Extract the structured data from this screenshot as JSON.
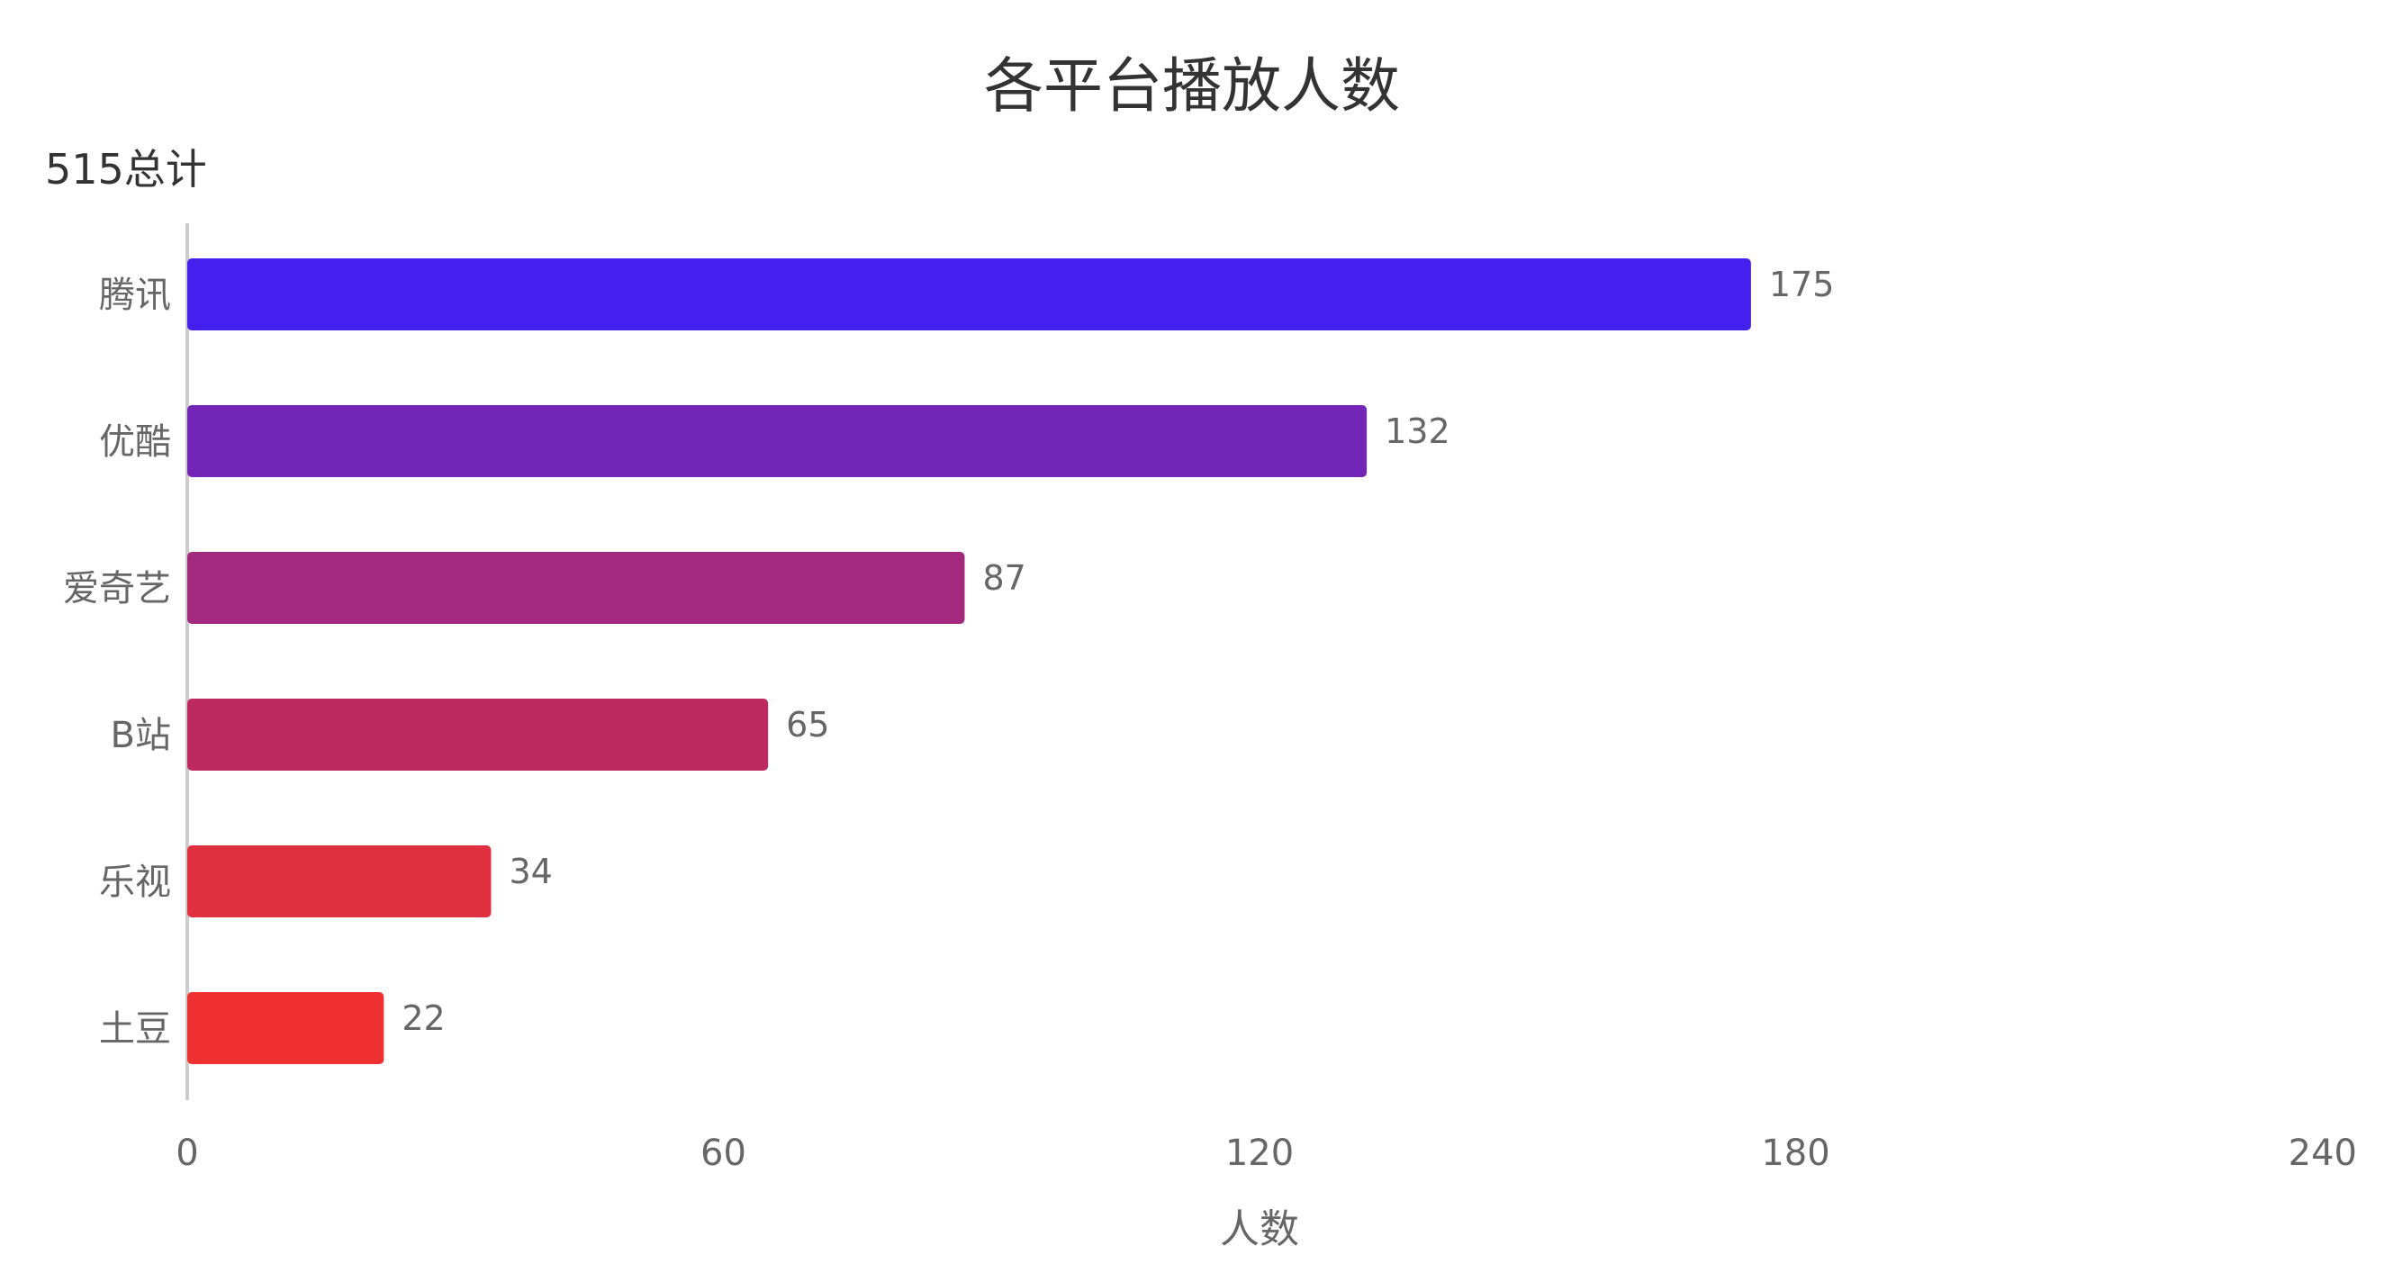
{
  "chart_data": {
    "type": "bar",
    "orientation": "horizontal",
    "title": "各平台播放人数",
    "subtitle": "515总计",
    "xlabel": "人数",
    "ylabel": "",
    "categories": [
      "腾讯",
      "优酷",
      "爱奇艺",
      "B站",
      "乐视",
      "土豆"
    ],
    "values": [
      175,
      132,
      87,
      65,
      34,
      22
    ],
    "value_labels": [
      "175",
      "132",
      "87",
      "65",
      "34",
      "22"
    ],
    "colors": [
      "#4420EE",
      "#7426B8",
      "#A2297E",
      "#BE2A60",
      "#E03040",
      "#EE3030"
    ],
    "xlim": [
      0,
      240
    ],
    "xticks": [
      0,
      60,
      120,
      180,
      240
    ],
    "xtick_labels": [
      "0",
      "60",
      "120",
      "180",
      "240"
    ],
    "grid": false,
    "legend": "none"
  }
}
